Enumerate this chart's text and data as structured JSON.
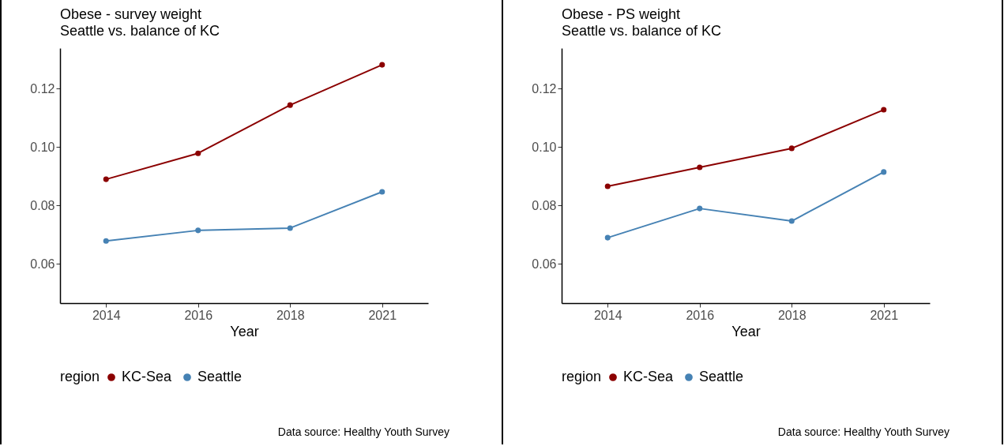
{
  "chart_data": [
    {
      "type": "line",
      "title": "Obese - survey weight",
      "subtitle": "Seattle vs. balance of KC",
      "xlabel": "Year",
      "categories": [
        "2014",
        "2016",
        "2018",
        "2021"
      ],
      "legend_title": "region",
      "legend": "bottom",
      "marker": "circle",
      "ylim": [
        0.0465,
        0.1338
      ],
      "yticks": [
        {
          "value": 0.06,
          "label": "0.06"
        },
        {
          "value": 0.08,
          "label": "0.08"
        },
        {
          "value": 0.1,
          "label": "0.10"
        },
        {
          "value": 0.12,
          "label": "0.12"
        }
      ],
      "annotations": [
        "Data source: Healthy Youth Survey"
      ],
      "series": [
        {
          "name": "KC-Sea",
          "color": "#8b0000",
          "values": [
            0.0889,
            0.0978,
            0.1143,
            0.1281
          ]
        },
        {
          "name": "Seattle",
          "color": "#4682b4",
          "values": [
            0.0678,
            0.0714,
            0.0722,
            0.0846
          ]
        }
      ]
    },
    {
      "type": "line",
      "title": "Obese - PS weight",
      "subtitle": "Seattle vs. balance of KC",
      "xlabel": "Year",
      "categories": [
        "2014",
        "2016",
        "2018",
        "2021"
      ],
      "legend_title": "region",
      "legend": "bottom",
      "marker": "circle",
      "ylim": [
        0.0465,
        0.1338
      ],
      "yticks": [
        {
          "value": 0.06,
          "label": "0.06"
        },
        {
          "value": 0.08,
          "label": "0.08"
        },
        {
          "value": 0.1,
          "label": "0.10"
        },
        {
          "value": 0.12,
          "label": "0.12"
        }
      ],
      "annotations": [
        "Data source: Healthy Youth Survey"
      ],
      "series": [
        {
          "name": "KC-Sea",
          "color": "#8b0000",
          "values": [
            0.0865,
            0.093,
            0.0995,
            0.1127
          ]
        },
        {
          "name": "Seattle",
          "color": "#4682b4",
          "values": [
            0.0689,
            0.0789,
            0.0746,
            0.0914
          ]
        }
      ]
    }
  ]
}
